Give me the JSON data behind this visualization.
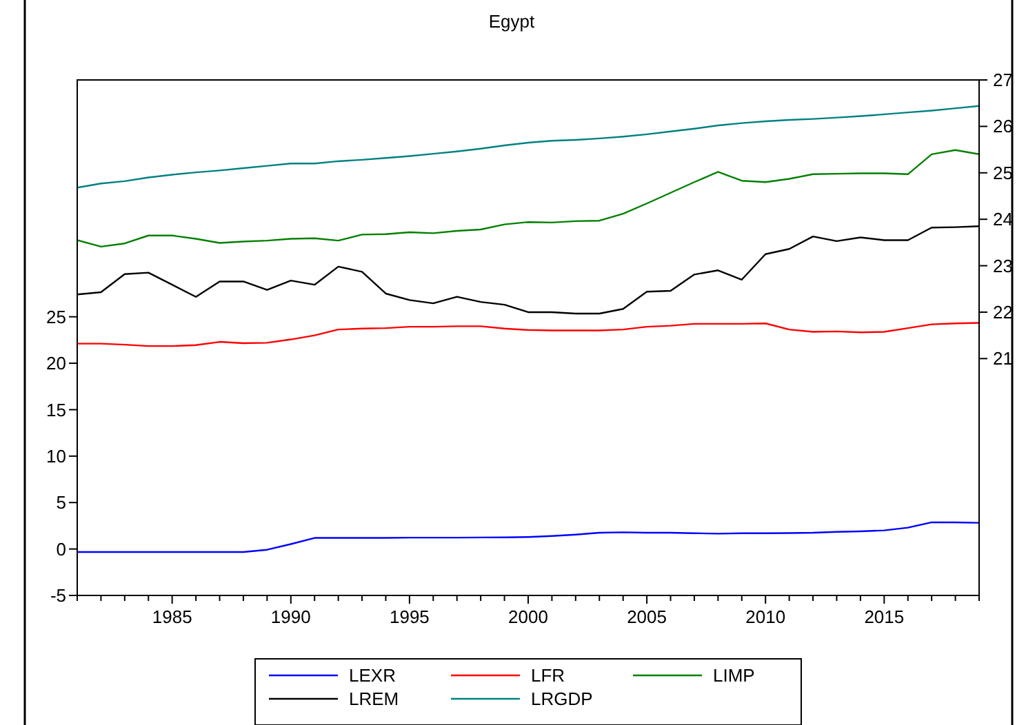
{
  "chart_data": {
    "type": "line",
    "title": "Egypt",
    "x": [
      1981,
      1982,
      1983,
      1984,
      1985,
      1986,
      1987,
      1988,
      1989,
      1990,
      1991,
      1992,
      1993,
      1994,
      1995,
      1996,
      1997,
      1998,
      1999,
      2000,
      2001,
      2002,
      2003,
      2004,
      2005,
      2006,
      2007,
      2008,
      2009,
      2010,
      2011,
      2012,
      2013,
      2014,
      2015,
      2016,
      2017,
      2018,
      2019
    ],
    "series": [
      {
        "name": "LEXR",
        "color": "#0000ff",
        "values": [
          -0.33,
          -0.33,
          -0.33,
          -0.33,
          -0.33,
          -0.33,
          -0.33,
          -0.33,
          -0.08,
          0.53,
          1.19,
          1.19,
          1.2,
          1.2,
          1.22,
          1.22,
          1.22,
          1.24,
          1.25,
          1.29,
          1.4,
          1.55,
          1.75,
          1.8,
          1.75,
          1.75,
          1.7,
          1.65,
          1.7,
          1.7,
          1.72,
          1.75,
          1.85,
          1.9,
          2.0,
          2.3,
          2.87,
          2.87,
          2.82
        ]
      },
      {
        "name": "LFR",
        "color": "#ff0000",
        "values": [
          22.11,
          22.11,
          22.0,
          21.85,
          21.85,
          21.95,
          22.3,
          22.16,
          22.2,
          22.56,
          23.0,
          23.63,
          23.73,
          23.78,
          23.93,
          23.93,
          23.98,
          23.98,
          23.73,
          23.58,
          23.53,
          23.53,
          23.53,
          23.63,
          23.93,
          24.04,
          24.24,
          24.24,
          24.24,
          24.29,
          23.63,
          23.38,
          23.43,
          23.32,
          23.38,
          23.78,
          24.19,
          24.29,
          24.34
        ]
      },
      {
        "name": "LIMP",
        "color": "#008000",
        "axis": "y2",
        "values": [
          23.55,
          23.41,
          23.48,
          23.65,
          23.65,
          23.58,
          23.49,
          23.52,
          23.54,
          23.58,
          23.59,
          23.54,
          23.67,
          23.68,
          23.72,
          23.7,
          23.75,
          23.78,
          23.89,
          23.94,
          23.93,
          23.96,
          23.97,
          24.12,
          24.34,
          24.57,
          24.8,
          25.02,
          24.83,
          24.8,
          24.87,
          24.97,
          24.98,
          24.99,
          24.99,
          24.97,
          25.4,
          25.49,
          25.4
        ]
      },
      {
        "name": "LREM",
        "color": "#000000",
        "axis": "y2",
        "values": [
          22.38,
          22.43,
          22.82,
          22.85,
          22.59,
          22.33,
          22.66,
          22.66,
          22.48,
          22.68,
          22.59,
          22.98,
          22.87,
          22.4,
          22.26,
          22.19,
          22.33,
          22.22,
          22.16,
          22.0,
          22.0,
          21.97,
          21.97,
          22.07,
          22.44,
          22.46,
          22.81,
          22.9,
          22.7,
          23.25,
          23.36,
          23.63,
          23.53,
          23.61,
          23.55,
          23.55,
          23.82,
          23.83,
          23.85
        ]
      },
      {
        "name": "LRGDP",
        "color": "#008080",
        "axis": "y2",
        "values": [
          24.68,
          24.77,
          24.82,
          24.9,
          24.96,
          25.01,
          25.05,
          25.1,
          25.15,
          25.2,
          25.2,
          25.25,
          25.28,
          25.32,
          25.36,
          25.41,
          25.46,
          25.52,
          25.59,
          25.65,
          25.69,
          25.71,
          25.74,
          25.78,
          25.83,
          25.89,
          25.95,
          26.02,
          26.07,
          26.11,
          26.14,
          26.16,
          26.19,
          26.22,
          26.26,
          26.3,
          26.34,
          26.39,
          26.44
        ]
      }
    ],
    "xlim": [
      1981,
      2019
    ],
    "xticks": [
      {
        "value": 1981,
        "label": null
      },
      {
        "value": 1982,
        "label": null
      },
      {
        "value": 1983,
        "label": null
      },
      {
        "value": 1984,
        "label": null
      },
      1985,
      {
        "value": 1986,
        "label": null
      },
      {
        "value": 1987,
        "label": null
      },
      {
        "value": 1988,
        "label": null
      },
      {
        "value": 1989,
        "label": null
      },
      1990,
      {
        "value": 1991,
        "label": null
      },
      {
        "value": 1992,
        "label": null
      },
      {
        "value": 1993,
        "label": null
      },
      {
        "value": 1994,
        "label": null
      },
      1995,
      {
        "value": 1996,
        "label": null
      },
      {
        "value": 1997,
        "label": null
      },
      {
        "value": 1998,
        "label": null
      },
      {
        "value": 1999,
        "label": null
      },
      2000,
      {
        "value": 2001,
        "label": null
      },
      {
        "value": 2002,
        "label": null
      },
      {
        "value": 2003,
        "label": null
      },
      {
        "value": 2004,
        "label": null
      },
      2005,
      {
        "value": 2006,
        "label": null
      },
      {
        "value": 2007,
        "label": null
      },
      {
        "value": 2008,
        "label": null
      },
      {
        "value": 2009,
        "label": null
      },
      2010,
      {
        "value": 2011,
        "label": null
      },
      {
        "value": 2012,
        "label": null
      },
      {
        "value": 2013,
        "label": null
      },
      {
        "value": 2014,
        "label": null
      },
      2015,
      {
        "value": 2016,
        "label": null
      },
      {
        "value": 2017,
        "label": null
      },
      {
        "value": 2018,
        "label": null
      },
      {
        "value": 2019,
        "label": null
      }
    ],
    "ylim": [
      -5,
      50.5
    ],
    "yticks": [
      -5,
      0,
      5,
      10,
      15,
      20,
      25
    ],
    "y2lim": [
      15.9,
      27
    ],
    "y2ticks": [
      21,
      22,
      23,
      24,
      25,
      26,
      27
    ],
    "legend": "bottom",
    "grid": false,
    "line_style": "solid",
    "marker": "none"
  }
}
